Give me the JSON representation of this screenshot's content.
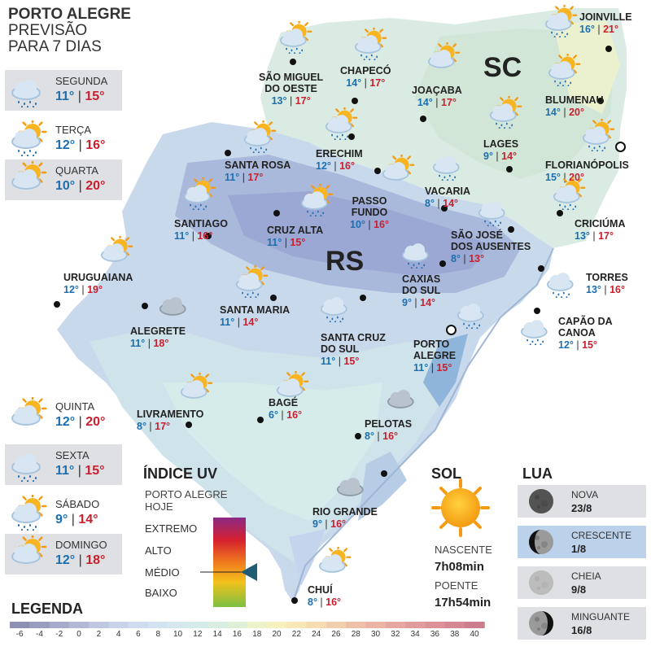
{
  "header": {
    "line1": "PORTO ALEGRE",
    "line2": "PREVISÃO",
    "line3": "PARA 7 DIAS"
  },
  "week": [
    {
      "day": "SEGUNDA",
      "min": "11°",
      "max": "15°",
      "icon": "cloud-rain-icon",
      "shade": true
    },
    {
      "day": "TERÇA",
      "min": "12°",
      "max": "16°",
      "icon": "sun-cloud-rain-icon",
      "shade": false
    },
    {
      "day": "QUARTA",
      "min": "10°",
      "max": "20°",
      "icon": "sun-cloud-icon",
      "shade": true
    },
    {
      "day": "QUINTA",
      "min": "12°",
      "max": "20°",
      "icon": "sun-cloud-icon",
      "shade": false
    },
    {
      "day": "SEXTA",
      "min": "11°",
      "max": "15°",
      "icon": "cloud-rain-icon",
      "shade": true
    },
    {
      "day": "SÁBADO",
      "min": "9°",
      "max": "14°",
      "icon": "sun-cloud-rain-icon",
      "shade": false
    },
    {
      "day": "DOMINGO",
      "min": "12°",
      "max": "18°",
      "icon": "sun-cloud-icon",
      "shade": true
    }
  ],
  "states": {
    "rs": "RS",
    "sc": "SC"
  },
  "cities": [
    {
      "key": "joinville",
      "name": [
        "JOINVILLE"
      ],
      "min": "16°",
      "max": "21°"
    },
    {
      "key": "sao-miguel",
      "name": [
        "SÃO MIGUEL",
        "DO OESTE"
      ],
      "min": "13°",
      "max": "17°"
    },
    {
      "key": "chapeco",
      "name": [
        "CHAPECÓ"
      ],
      "min": "14°",
      "max": "17°"
    },
    {
      "key": "joacaba",
      "name": [
        "JOAÇABA"
      ],
      "min": "14°",
      "max": "17°"
    },
    {
      "key": "blumenau",
      "name": [
        "BLUMENAU"
      ],
      "min": "14°",
      "max": "20°"
    },
    {
      "key": "lages",
      "name": [
        "LAGES"
      ],
      "min": "9°",
      "max": "14°"
    },
    {
      "key": "santa-rosa",
      "name": [
        "SANTA ROSA"
      ],
      "min": "11°",
      "max": "17°"
    },
    {
      "key": "erechim",
      "name": [
        "ERECHIM"
      ],
      "min": "12°",
      "max": "16°"
    },
    {
      "key": "florianopolis",
      "name": [
        "FLORIANÓPOLIS"
      ],
      "min": "15°",
      "max": "20°"
    },
    {
      "key": "vacaria",
      "name": [
        "VACARIA"
      ],
      "min": "8°",
      "max": "14°"
    },
    {
      "key": "passo-fundo",
      "name": [
        "PASSO",
        "FUNDO"
      ],
      "min": "10°",
      "max": "16°"
    },
    {
      "key": "santiago",
      "name": [
        "SANTIAGO"
      ],
      "min": "11°",
      "max": "16°"
    },
    {
      "key": "cruz-alta",
      "name": [
        "CRUZ ALTA"
      ],
      "min": "11°",
      "max": "15°"
    },
    {
      "key": "sao-jose",
      "name": [
        "SÃO JOSÉ",
        "DOS AUSENTES"
      ],
      "min": "8°",
      "max": "13°"
    },
    {
      "key": "criciuma",
      "name": [
        "CRICIÚMA"
      ],
      "min": "13°",
      "max": "17°"
    },
    {
      "key": "uruguaiana",
      "name": [
        "URUGUAIANA"
      ],
      "min": "12°",
      "max": "19°"
    },
    {
      "key": "torres",
      "name": [
        "TORRES"
      ],
      "min": "13°",
      "max": "16°"
    },
    {
      "key": "caxias",
      "name": [
        "CAXIAS",
        "DO SUL"
      ],
      "min": "9°",
      "max": "14°"
    },
    {
      "key": "santa-maria",
      "name": [
        "SANTA MARIA"
      ],
      "min": "11°",
      "max": "14°"
    },
    {
      "key": "alegrete",
      "name": [
        "ALEGRETE"
      ],
      "min": "11°",
      "max": "18°"
    },
    {
      "key": "capao",
      "name": [
        "CAPÃO DA",
        "CANOA"
      ],
      "min": "12°",
      "max": "15°"
    },
    {
      "key": "santa-cruz",
      "name": [
        "SANTA CRUZ",
        "DO SUL"
      ],
      "min": "11°",
      "max": "15°"
    },
    {
      "key": "porto-alegre",
      "name": [
        "PORTO",
        "ALEGRE"
      ],
      "min": "11°",
      "max": "15°"
    },
    {
      "key": "livramento",
      "name": [
        "LIVRAMENTO"
      ],
      "min": "8°",
      "max": "17°"
    },
    {
      "key": "bage",
      "name": [
        "BAGÉ"
      ],
      "min": "6°",
      "max": "16°"
    },
    {
      "key": "pelotas",
      "name": [
        "PELOTAS"
      ],
      "min": "8°",
      "max": "16°"
    },
    {
      "key": "rio-grande",
      "name": [
        "RIO GRANDE"
      ],
      "min": "9°",
      "max": "16°"
    },
    {
      "key": "chui",
      "name": [
        "CHUÍ"
      ],
      "min": "8°",
      "max": "16°"
    }
  ],
  "uv": {
    "title": "ÍNDICE UV",
    "sub1": "PORTO ALEGRE",
    "sub2": "HOJE",
    "levels": [
      "EXTREMO",
      "ALTO",
      "MÉDIO",
      "BAIXO"
    ],
    "current": "MÉDIO"
  },
  "sol": {
    "title": "SOL",
    "rise_label": "NASCENTE",
    "rise": "7h08min",
    "set_label": "POENTE",
    "set": "17h54min"
  },
  "lua": {
    "title": "LUA",
    "phases": [
      {
        "name": "NOVA",
        "date": "23/8"
      },
      {
        "name": "CRESCENTE",
        "date": "1/8"
      },
      {
        "name": "CHEIA",
        "date": "9/8"
      },
      {
        "name": "MINGUANTE",
        "date": "16/8"
      }
    ]
  },
  "legend": {
    "title": "LEGENDA",
    "ticks": [
      "-6",
      "-4",
      "-2",
      "0",
      "2",
      "4",
      "6",
      "8",
      "10",
      "12",
      "14",
      "16",
      "18",
      "20",
      "22",
      "24",
      "26",
      "28",
      "30",
      "32",
      "34",
      "36",
      "38",
      "40"
    ],
    "colors": [
      "#8e8fb5",
      "#9a9cc0",
      "#a8aacb",
      "#b4b8d6",
      "#c0c7e0",
      "#c8d3ea",
      "#cfdcef",
      "#d3e3f0",
      "#d4e8ee",
      "#d5ecea",
      "#d8eee2",
      "#dff0d6",
      "#ecf3c8",
      "#f6f1bd",
      "#f9e8b7",
      "#f7dcb1",
      "#f3ceac",
      "#efc0a7",
      "#ebb4a3",
      "#e6a7a0",
      "#e09c9c",
      "#da9297",
      "#d48893",
      "#cc7d8e"
    ]
  }
}
